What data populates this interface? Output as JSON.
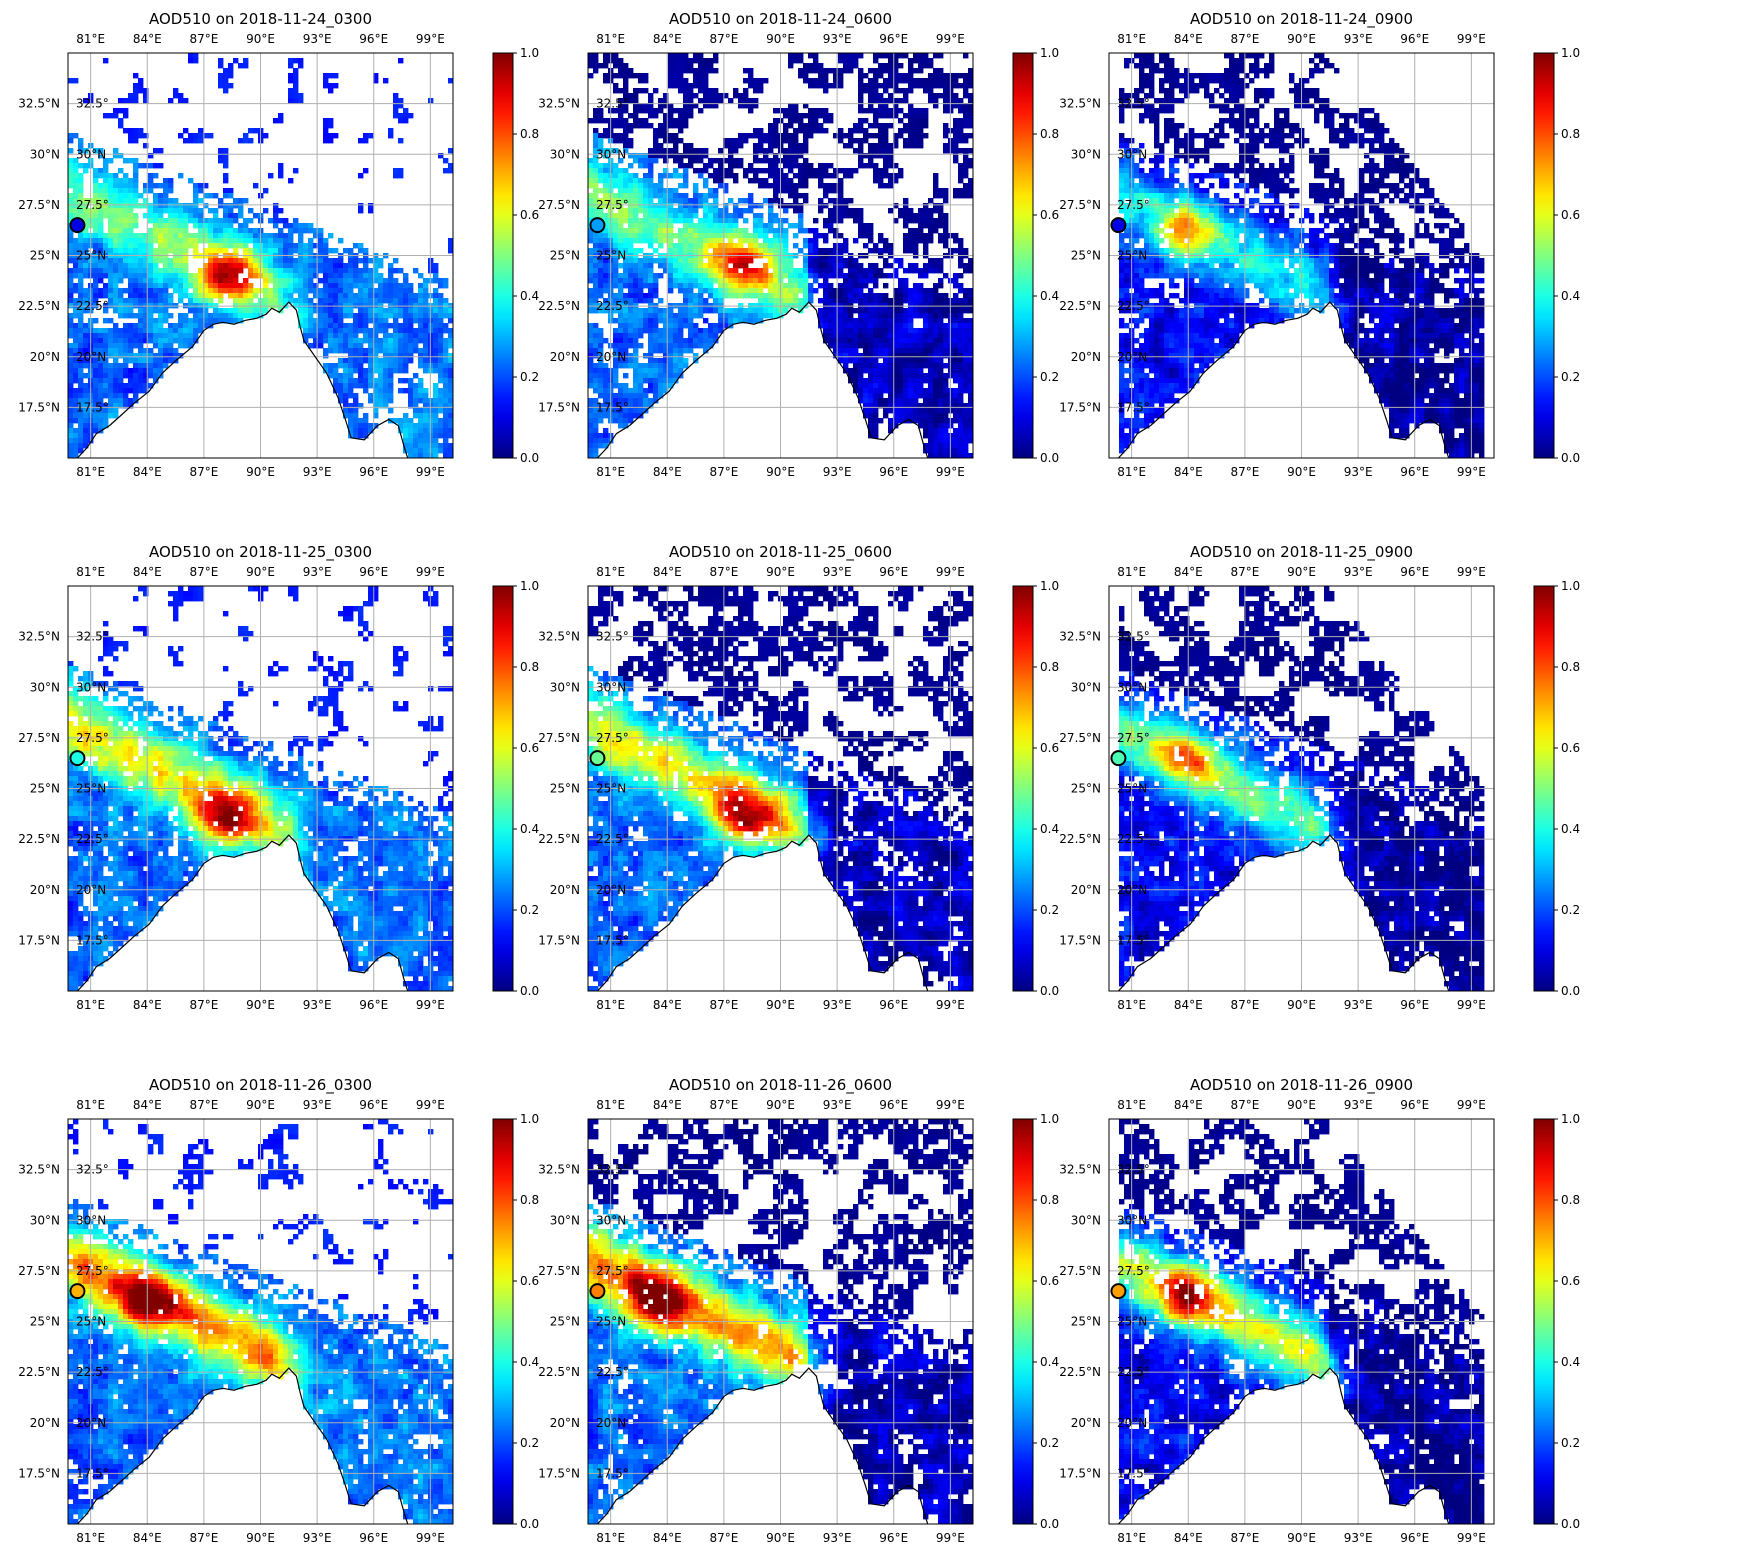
{
  "figure": {
    "colormap": "jet",
    "colorbar_ticks": [
      "0.0",
      "0.2",
      "0.4",
      "0.6",
      "0.8",
      "1.0"
    ],
    "lon_ticks": [
      "81°E",
      "84°E",
      "87°E",
      "90°E",
      "93°E",
      "96°E",
      "99°E"
    ],
    "lat_ticks_left": [
      "17.5°N",
      "20°N",
      "22.5°N",
      "25°N",
      "27.5°N",
      "30°N",
      "32.5°N"
    ],
    "lat_ticks_right": [
      "17.5°",
      "20°N",
      "22.5°",
      "25°N",
      "27.5°",
      "30°N",
      "32.5°"
    ],
    "site_marker": {
      "lon": 80.3,
      "lat": 26.5
    },
    "colors": {
      "grid": "#b0b0b0",
      "coast": "#000000",
      "marker_edge": "#000000"
    }
  },
  "chart_data": [
    {
      "type": "heatmap",
      "title": "AOD510 on 2018-11-24_0300",
      "variable": "AOD510",
      "xlim": [
        79.8,
        100.2
      ],
      "ylim": [
        15.0,
        35.0
      ],
      "clim": [
        0.0,
        1.0
      ],
      "grid": true,
      "marker_value": 0.1,
      "coverage": "partial",
      "hotspot": {
        "lon": 88.2,
        "lat": 24.0,
        "value": 0.95
      }
    },
    {
      "type": "heatmap",
      "title": "AOD510 on 2018-11-24_0600",
      "variable": "AOD510",
      "xlim": [
        79.8,
        100.2
      ],
      "ylim": [
        15.0,
        35.0
      ],
      "clim": [
        0.0,
        1.0
      ],
      "grid": true,
      "marker_value": 0.28,
      "coverage": "full",
      "hotspot": {
        "lon": 88.0,
        "lat": 24.5,
        "value": 0.9
      }
    },
    {
      "type": "heatmap",
      "title": "AOD510 on 2018-11-24_0900",
      "variable": "AOD510",
      "xlim": [
        79.8,
        100.2
      ],
      "ylim": [
        15.0,
        35.0
      ],
      "clim": [
        0.0,
        1.0
      ],
      "grid": true,
      "marker_value": 0.1,
      "coverage": "afternoon",
      "hotspot": {
        "lon": 84.0,
        "lat": 26.3,
        "value": 0.75
      }
    },
    {
      "type": "heatmap",
      "title": "AOD510 on 2018-11-25_0300",
      "variable": "AOD510",
      "xlim": [
        79.8,
        100.2
      ],
      "ylim": [
        15.0,
        35.0
      ],
      "clim": [
        0.0,
        1.0
      ],
      "grid": true,
      "marker_value": 0.4,
      "coverage": "partial",
      "hotspot": {
        "lon": 88.0,
        "lat": 23.5,
        "value": 0.95
      }
    },
    {
      "type": "heatmap",
      "title": "AOD510 on 2018-11-25_0600",
      "variable": "AOD510",
      "xlim": [
        79.8,
        100.2
      ],
      "ylim": [
        15.0,
        35.0
      ],
      "clim": [
        0.0,
        1.0
      ],
      "grid": true,
      "marker_value": 0.48,
      "coverage": "full",
      "hotspot": {
        "lon": 88.0,
        "lat": 23.5,
        "value": 0.92
      }
    },
    {
      "type": "heatmap",
      "title": "AOD510 on 2018-11-25_0900",
      "variable": "AOD510",
      "xlim": [
        79.8,
        100.2
      ],
      "ylim": [
        15.0,
        35.0
      ],
      "clim": [
        0.0,
        1.0
      ],
      "grid": true,
      "marker_value": 0.45,
      "coverage": "afternoon",
      "hotspot": {
        "lon": 84.0,
        "lat": 26.5,
        "value": 0.7
      }
    },
    {
      "type": "heatmap",
      "title": "AOD510 on 2018-11-26_0300",
      "variable": "AOD510",
      "xlim": [
        79.8,
        100.2
      ],
      "ylim": [
        15.0,
        35.0
      ],
      "clim": [
        0.0,
        1.0
      ],
      "grid": true,
      "marker_value": 0.7,
      "coverage": "partial",
      "hotspot": {
        "lon": 84.0,
        "lat": 26.0,
        "value": 0.85
      }
    },
    {
      "type": "heatmap",
      "title": "AOD510 on 2018-11-26_0600",
      "variable": "AOD510",
      "xlim": [
        79.8,
        100.2
      ],
      "ylim": [
        15.0,
        35.0
      ],
      "clim": [
        0.0,
        1.0
      ],
      "grid": true,
      "marker_value": 0.75,
      "coverage": "full",
      "hotspot": {
        "lon": 83.5,
        "lat": 26.0,
        "value": 0.95
      }
    },
    {
      "type": "heatmap",
      "title": "AOD510 on 2018-11-26_0900",
      "variable": "AOD510",
      "xlim": [
        79.8,
        100.2
      ],
      "ylim": [
        15.0,
        35.0
      ],
      "clim": [
        0.0,
        1.0
      ],
      "grid": true,
      "marker_value": 0.72,
      "coverage": "afternoon",
      "hotspot": {
        "lon": 84.0,
        "lat": 26.3,
        "value": 0.85
      }
    }
  ]
}
